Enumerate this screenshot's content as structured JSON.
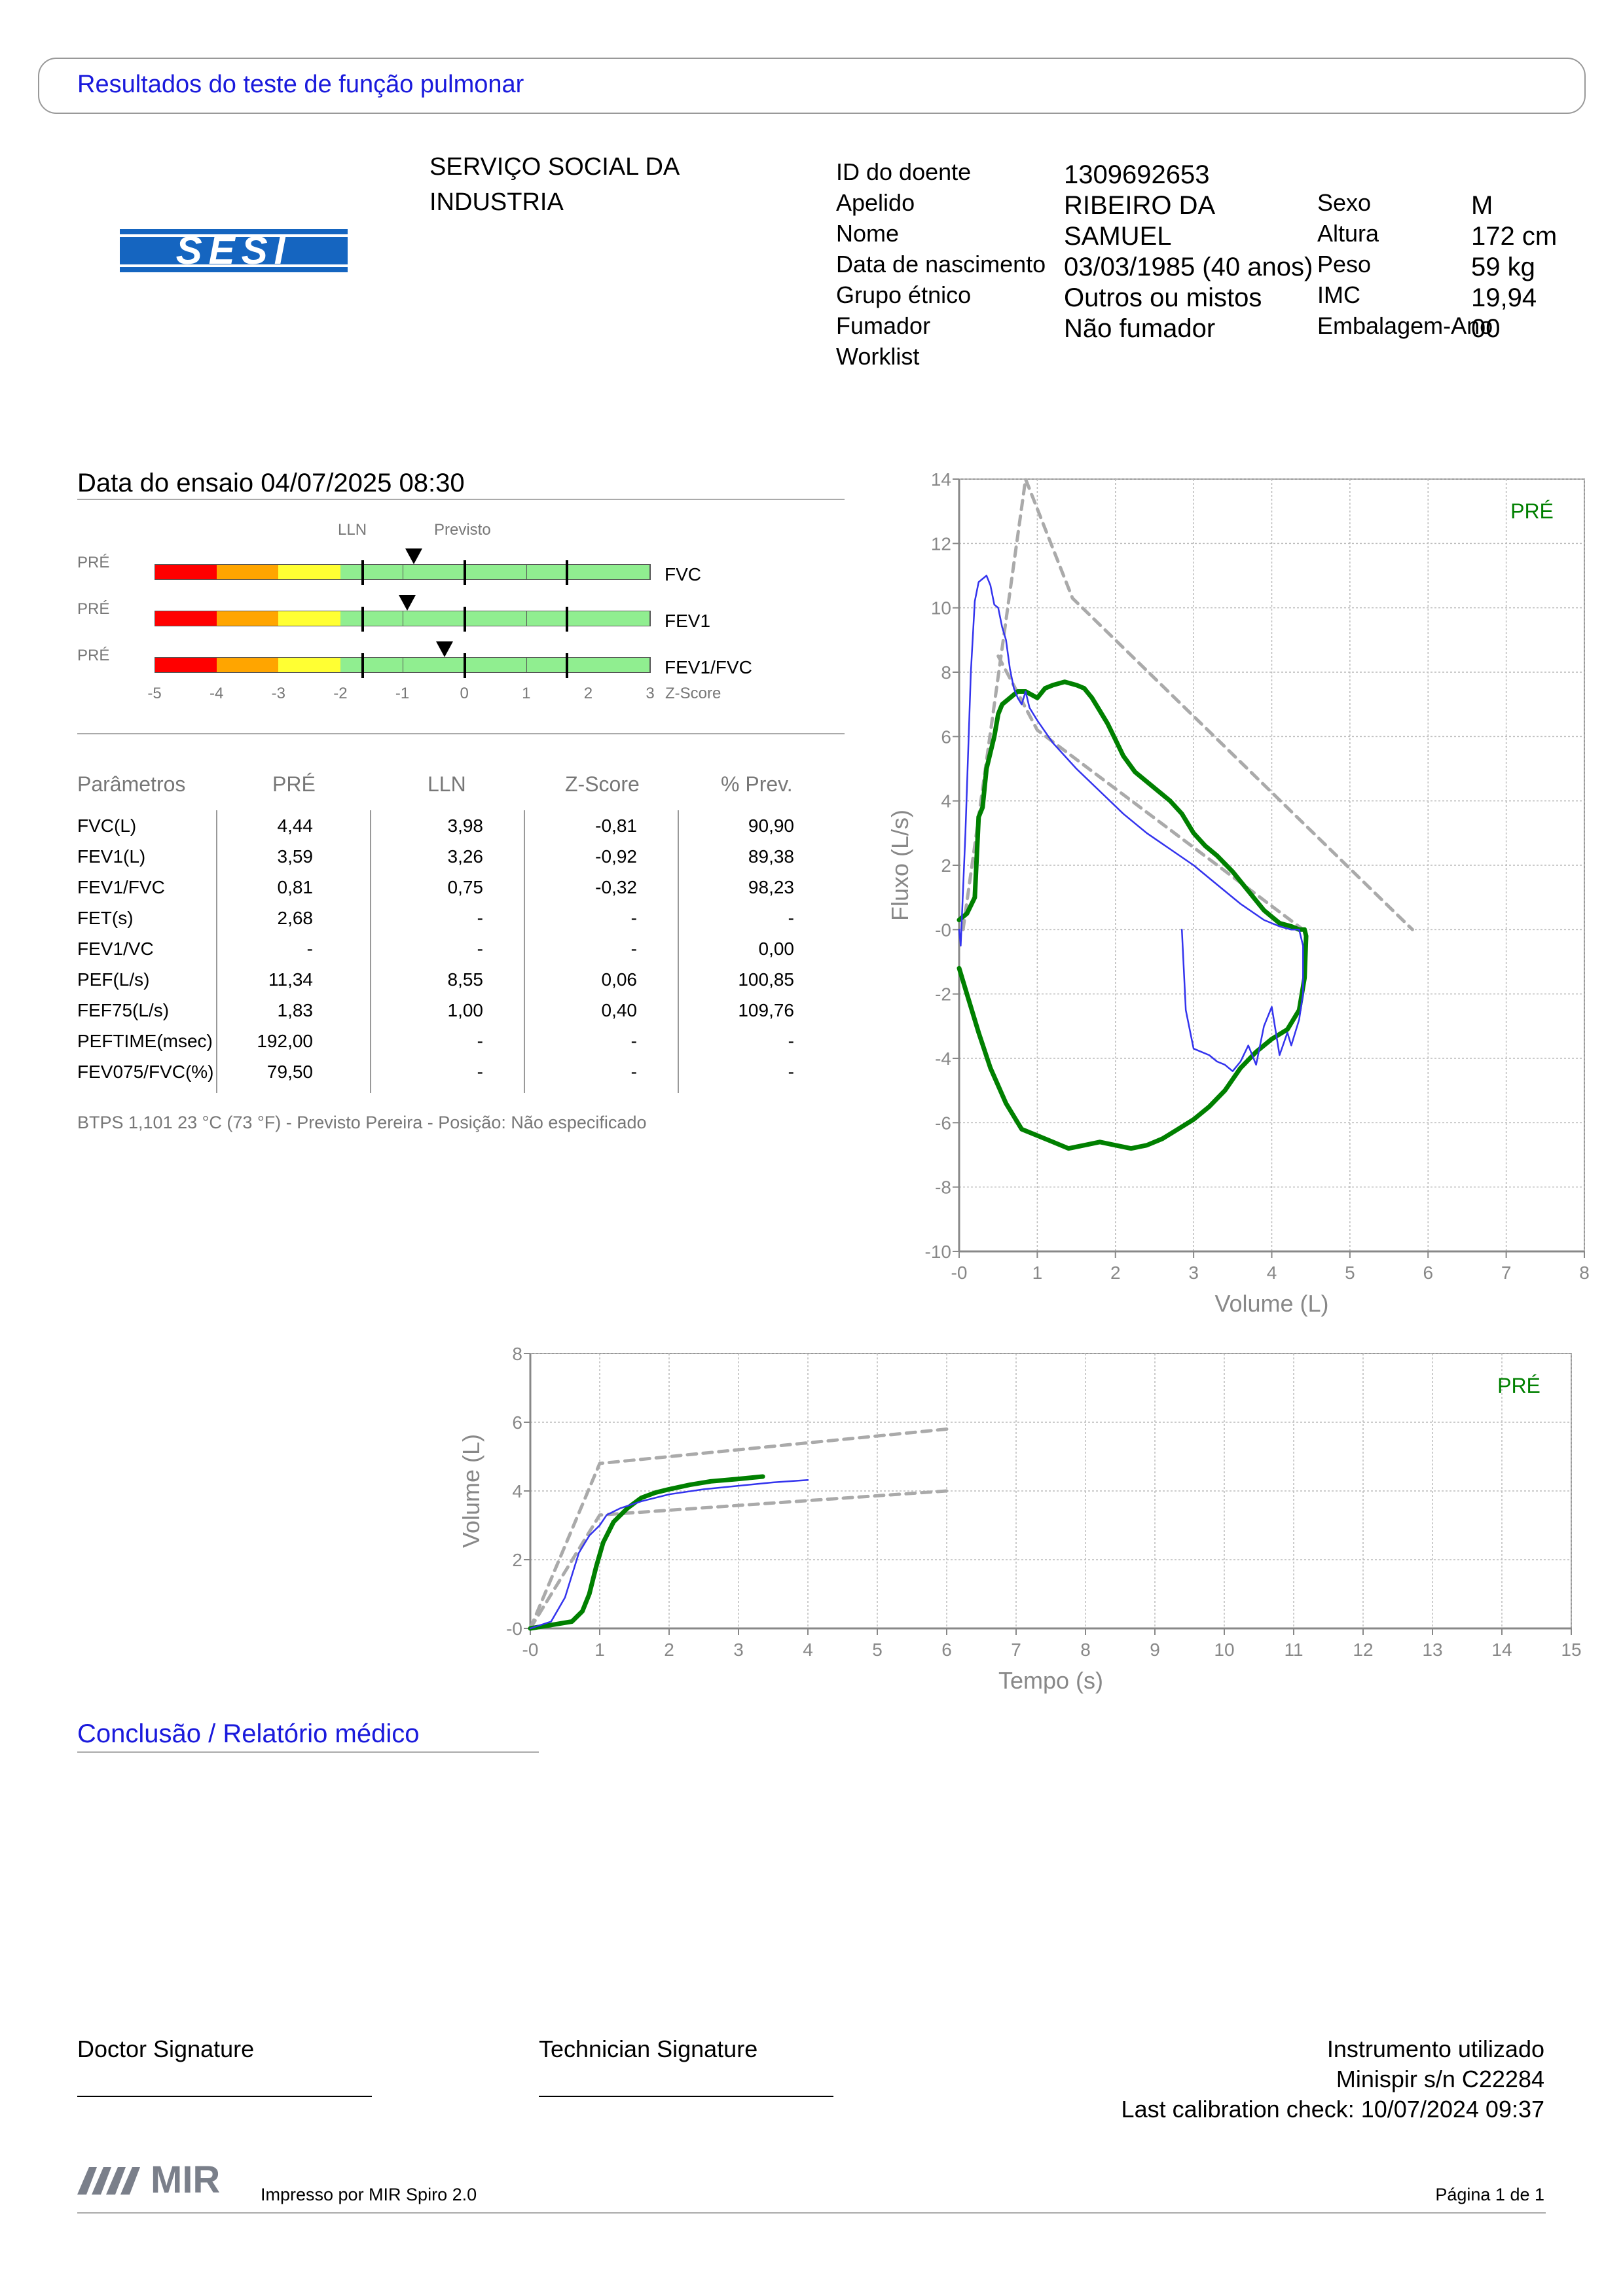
{
  "header": {
    "title": "Resultados do teste de função pulmonar"
  },
  "organization": {
    "line1": "SERVIÇO SOCIAL DA",
    "line2": "INDUSTRIA",
    "logo_text": "SESI"
  },
  "patient": {
    "col1": [
      {
        "label": "ID do doente",
        "value": "1309692653"
      },
      {
        "label": "Apelido",
        "value": "RIBEIRO DA"
      },
      {
        "label": "Nome",
        "value": "SAMUEL"
      },
      {
        "label": "Data de nascimento",
        "value": "03/03/1985 (40 anos)"
      },
      {
        "label": "Grupo étnico",
        "value": "Outros ou mistos"
      },
      {
        "label": "Fumador",
        "value": "Não fumador"
      },
      {
        "label": "Worklist",
        "value": ""
      }
    ],
    "col2": [
      {
        "label": "Sexo",
        "value": "M"
      },
      {
        "label": "Altura",
        "value": "172 cm"
      },
      {
        "label": "Peso",
        "value": "59 kg"
      },
      {
        "label": "IMC",
        "value": "19,94"
      },
      {
        "label": "Embalagem-Ano",
        "value": "00"
      }
    ]
  },
  "test": {
    "date_label": "Data do ensaio 04/07/2025 08:30"
  },
  "zscore_panel": {
    "lln_label": "LLN",
    "predicted_label": "Previsto",
    "axis_ticks": [
      "-5",
      "-4",
      "-3",
      "-2",
      "-1",
      "0",
      "1",
      "2",
      "3"
    ],
    "axis_title": "Z-Score",
    "bars": [
      {
        "phase": "PRÉ",
        "name": "FVC",
        "zscore": -0.81
      },
      {
        "phase": "PRÉ",
        "name": "FEV1",
        "zscore": -0.92
      },
      {
        "phase": "PRÉ",
        "name": "FEV1/FVC",
        "zscore": -0.32
      }
    ],
    "colors": {
      "red": "#ff0000",
      "orange": "#ffa500",
      "yellow": "#ffff33",
      "green": "#90ee90"
    }
  },
  "params_table": {
    "headers": [
      "Parâmetros",
      "PRÉ",
      "LLN",
      "Z-Score",
      "% Prev."
    ],
    "rows": [
      [
        "FVC(L)",
        "4,44",
        "3,98",
        "-0,81",
        "90,90"
      ],
      [
        "FEV1(L)",
        "3,59",
        "3,26",
        "-0,92",
        "89,38"
      ],
      [
        "FEV1/FVC",
        "0,81",
        "0,75",
        "-0,32",
        "98,23"
      ],
      [
        "FET(s)",
        "2,68",
        "-",
        "-",
        "-"
      ],
      [
        "FEV1/VC",
        "-",
        "-",
        "-",
        "0,00"
      ],
      [
        "PEF(L/s)",
        "11,34",
        "8,55",
        "0,06",
        "100,85"
      ],
      [
        "FEF75(L/s)",
        "1,83",
        "1,00",
        "0,40",
        "109,76"
      ],
      [
        "PEFTIME(msec)",
        "192,00",
        "-",
        "-",
        "-"
      ],
      [
        "FEV075/FVC(%)",
        "79,50",
        "-",
        "-",
        "-"
      ]
    ],
    "footnote": "BTPS 1,101 23 °C (73 °F) - Previsto Pereira - Posição: Não especificado"
  },
  "chart_data": [
    {
      "type": "line",
      "title": "",
      "xlabel": "Volume (L)",
      "ylabel": "Fluxo (L/s)",
      "xlim": [
        0,
        8
      ],
      "ylim": [
        -10,
        14
      ],
      "x_ticks": [
        "-0",
        "1",
        "2",
        "3",
        "4",
        "5",
        "6",
        "7",
        "8"
      ],
      "y_ticks": [
        "14",
        "12",
        "10",
        "8",
        "6",
        "4",
        "2",
        "-0",
        "-2",
        "-4",
        "-6",
        "-8",
        "-10"
      ],
      "legend": "PRÉ",
      "grid": true,
      "series": [
        {
          "color": "#808080",
          "style": "dashed",
          "x": [
            0.05,
            0.85,
            1.45,
            5.8
          ],
          "y": [
            0,
            14.0,
            10.3,
            0
          ]
        },
        {
          "color": "#808080",
          "style": "dashed",
          "x": [
            0.5,
            1.0,
            4.4
          ],
          "y": [
            8.5,
            6.2,
            0
          ]
        },
        {
          "color": "#008000",
          "style": "solid",
          "x": [
            0.0,
            0.1,
            0.2,
            0.25,
            0.3,
            0.35,
            0.45,
            0.5,
            0.55,
            0.65,
            0.75,
            0.85,
            1.0,
            1.1,
            1.2,
            1.35,
            1.5,
            1.6,
            1.7,
            1.8,
            1.9,
            2.0,
            2.1,
            2.25,
            2.4,
            2.55,
            2.7,
            2.85,
            3.0,
            3.15,
            3.3,
            3.5,
            3.7,
            3.9,
            4.1,
            4.25,
            4.35,
            4.42,
            4.44,
            4.42,
            4.35,
            4.2,
            4.0,
            3.8,
            3.6,
            3.4,
            3.2,
            3.0,
            2.8,
            2.6,
            2.4,
            2.2,
            2.0,
            1.8,
            1.6,
            1.4,
            1.2,
            1.0,
            0.8,
            0.6,
            0.4,
            0.25,
            0.1,
            0.0
          ],
          "y": [
            0.3,
            0.5,
            1.0,
            3.5,
            3.8,
            5.0,
            6.0,
            6.7,
            7.0,
            7.2,
            7.4,
            7.4,
            7.2,
            7.5,
            7.6,
            7.7,
            7.6,
            7.5,
            7.2,
            6.8,
            6.4,
            5.9,
            5.4,
            4.9,
            4.6,
            4.3,
            4.0,
            3.6,
            3.0,
            2.6,
            2.3,
            1.8,
            1.2,
            0.6,
            0.2,
            0.1,
            0.0,
            0.0,
            -0.2,
            -1.5,
            -2.5,
            -3.1,
            -3.4,
            -3.8,
            -4.3,
            -5.0,
            -5.5,
            -5.9,
            -6.2,
            -6.5,
            -6.7,
            -6.8,
            -6.7,
            -6.6,
            -6.7,
            -6.8,
            -6.6,
            -6.4,
            -6.2,
            -5.4,
            -4.3,
            -3.2,
            -2.0,
            -1.2
          ]
        },
        {
          "color": "#3333ee",
          "style": "solid",
          "x": [
            0.0,
            0.02,
            0.08,
            0.15,
            0.2,
            0.25,
            0.3,
            0.35,
            0.4,
            0.45,
            0.5,
            0.55,
            0.6,
            0.65,
            0.7,
            0.75,
            0.8,
            0.85,
            0.9,
            1.0,
            1.2,
            1.5,
            1.8,
            2.1,
            2.4,
            2.7,
            3.0,
            3.3,
            3.6,
            3.9,
            4.1,
            4.25,
            4.35,
            4.4,
            4.4,
            4.35,
            4.25,
            4.2,
            4.1,
            4.0,
            3.9,
            3.8,
            3.7,
            3.6,
            3.5,
            3.4,
            3.3,
            3.2,
            3.1,
            3.0,
            2.9,
            2.85
          ],
          "y": [
            0,
            -0.5,
            3.0,
            8.0,
            10.2,
            10.8,
            10.9,
            11.0,
            10.7,
            10.1,
            10.0,
            9.4,
            9.0,
            8.1,
            7.5,
            7.2,
            7.0,
            7.4,
            6.9,
            6.5,
            5.8,
            5.0,
            4.3,
            3.6,
            3.0,
            2.5,
            2.0,
            1.4,
            0.8,
            0.3,
            0.1,
            0.0,
            0.0,
            -0.5,
            -2.0,
            -2.8,
            -3.6,
            -3.2,
            -3.9,
            -2.4,
            -3.0,
            -4.2,
            -3.6,
            -4.1,
            -4.4,
            -4.2,
            -4.1,
            -3.9,
            -3.8,
            -3.7,
            -2.5,
            0.0
          ]
        }
      ]
    },
    {
      "type": "line",
      "title": "",
      "xlabel": "Tempo (s)",
      "ylabel": "Volume (L)",
      "xlim": [
        0,
        15
      ],
      "ylim": [
        0,
        8
      ],
      "x_ticks": [
        "-0",
        "1",
        "2",
        "3",
        "4",
        "5",
        "6",
        "7",
        "8",
        "9",
        "10",
        "11",
        "12",
        "13",
        "14",
        "15"
      ],
      "y_ticks": [
        "8",
        "6",
        "4",
        "2",
        "-0"
      ],
      "legend": "PRÉ",
      "grid": true,
      "series": [
        {
          "color": "#808080",
          "style": "dashed",
          "x": [
            0,
            1.0,
            6.0
          ],
          "y": [
            0,
            4.8,
            5.8
          ]
        },
        {
          "color": "#808080",
          "style": "dashed",
          "x": [
            0,
            1.0,
            6.0
          ],
          "y": [
            0,
            3.3,
            4.0
          ]
        },
        {
          "color": "#008000",
          "style": "solid",
          "x": [
            0,
            0.3,
            0.6,
            0.75,
            0.85,
            0.95,
            1.05,
            1.2,
            1.4,
            1.6,
            1.8,
            2.0,
            2.3,
            2.6,
            3.0,
            3.35
          ],
          "y": [
            0,
            0.1,
            0.2,
            0.5,
            1.0,
            1.8,
            2.5,
            3.1,
            3.5,
            3.8,
            3.95,
            4.05,
            4.18,
            4.28,
            4.35,
            4.42
          ]
        },
        {
          "color": "#3333ee",
          "style": "solid",
          "x": [
            0,
            0.3,
            0.5,
            0.7,
            0.85,
            1.0,
            1.1,
            1.3,
            1.6,
            2.0,
            2.5,
            3.0,
            3.5,
            4.0
          ],
          "y": [
            0,
            0.2,
            0.9,
            2.2,
            2.7,
            3.0,
            3.3,
            3.5,
            3.7,
            3.9,
            4.05,
            4.15,
            4.25,
            4.32
          ]
        }
      ]
    }
  ],
  "conclusion": {
    "heading": "Conclusão / Relatório médico"
  },
  "signatures": {
    "doctor": "Doctor Signature",
    "technician": "Technician Signature"
  },
  "instrument": {
    "line1": "Instrumento utilizado",
    "line2": "Minispir s/n C22284",
    "line3": "Last calibration check: 10/07/2024 09:37"
  },
  "footer": {
    "logo_text": "MIR",
    "printed_by": "Impresso por MIR Spiro 2.0",
    "page": "Página 1 de 1"
  }
}
